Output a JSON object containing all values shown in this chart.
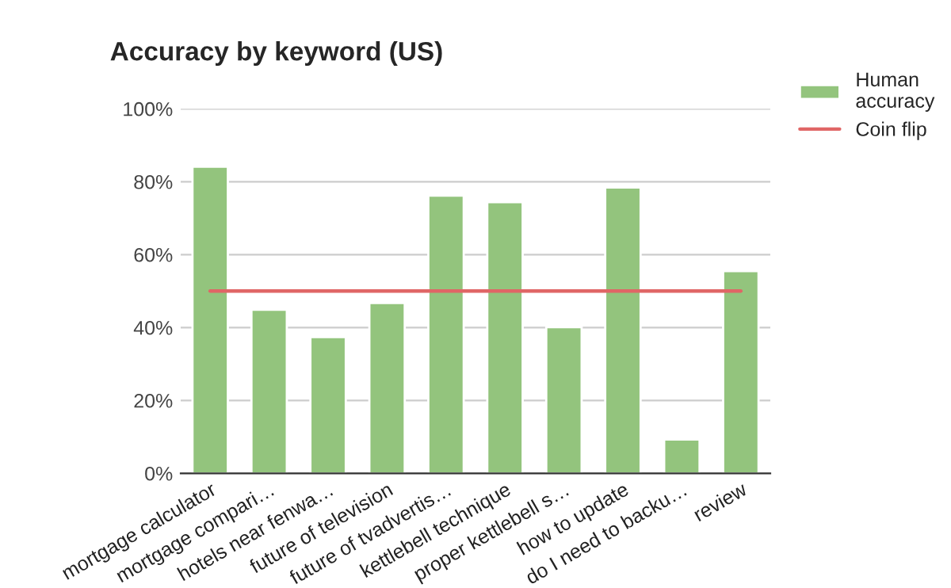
{
  "chart_data": {
    "type": "bar",
    "title": "Accuracy by keyword (US)",
    "categories": [
      "mortgage calculator",
      "mortgage compari…",
      "hotels near fenwa…",
      "future of television",
      "future of tvadvertis…",
      "kettlebell technique",
      "proper kettlebell s…",
      "how to update",
      "do I need to backu…",
      "review"
    ],
    "series": [
      {
        "name": "Human accuracy",
        "color": "#93c47d",
        "values": [
          0.841,
          0.449,
          0.374,
          0.467,
          0.762,
          0.744,
          0.401,
          0.784,
          0.093,
          0.555
        ]
      },
      {
        "name": "Coin flip",
        "type": "line",
        "color": "#e06666",
        "values": [
          0.5,
          0.5,
          0.5,
          0.5,
          0.5,
          0.5,
          0.5,
          0.5,
          0.5,
          0.5
        ]
      }
    ],
    "ylim": [
      0,
      1
    ],
    "yticks": [
      {
        "value": 0,
        "label": "0%"
      },
      {
        "value": 0.2,
        "label": "20%"
      },
      {
        "value": 0.4,
        "label": "40%"
      },
      {
        "value": 0.6,
        "label": "60%"
      },
      {
        "value": 0.8,
        "label": "80%"
      },
      {
        "value": 1,
        "label": "100%"
      }
    ],
    "grid": "y",
    "legend": "right",
    "marker": "none"
  }
}
